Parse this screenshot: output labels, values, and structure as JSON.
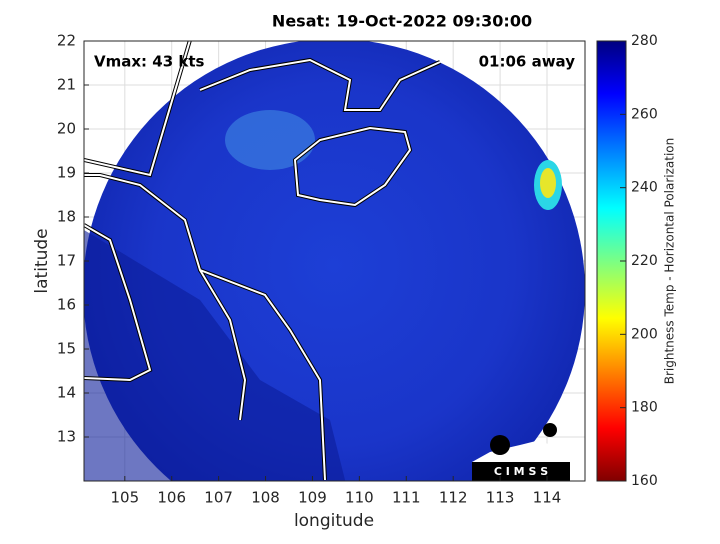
{
  "chart_data": {
    "type": "map",
    "title": "Nesat: 19-Oct-2022 09:30:00",
    "annotations": [
      "Vmax: 43 kts",
      "01:06 away"
    ],
    "xlabel": "longitude",
    "ylabel": "latitude",
    "xlim": [
      104.13,
      114.81
    ],
    "xticks": [
      105,
      106,
      107,
      108,
      109,
      110,
      111,
      112,
      113,
      114
    ],
    "ylim": [
      12,
      22
    ],
    "yticks": [
      13,
      14,
      15,
      16,
      17,
      18,
      19,
      20,
      21,
      22
    ],
    "colorbar_label": "Brightness Temp - Horizontal Polarization",
    "clim": [
      160,
      280
    ],
    "cticks": [
      160,
      180,
      200,
      220,
      240,
      260,
      280
    ],
    "logo": "C I M S S"
  }
}
